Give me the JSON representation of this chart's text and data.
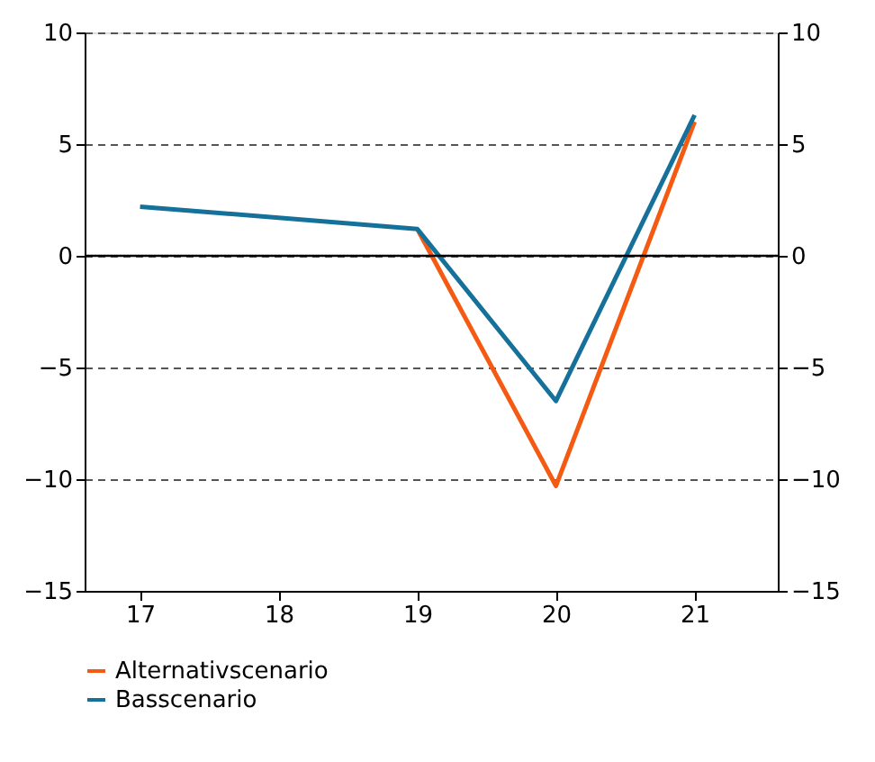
{
  "chart_data": {
    "type": "line",
    "legend": "bottom",
    "grid": "y",
    "xlim": [
      16.6,
      21.6
    ],
    "xticks": [
      17,
      18,
      19,
      20,
      21
    ],
    "ylim": [
      -15,
      10
    ],
    "yticks": [
      -15,
      -10,
      -5,
      0,
      5,
      10
    ],
    "y2lim": [
      -15,
      10
    ],
    "y2ticks": [
      -15,
      -10,
      -5,
      0,
      5,
      10
    ],
    "ref_lines": [
      {
        "axis": "y",
        "value": 0,
        "color": "#000000",
        "line_style": "solid"
      }
    ],
    "series": [
      {
        "name": "Alternativscenario",
        "color": "#f45a12",
        "x": [
          19,
          20,
          21
        ],
        "values": [
          1.2,
          -10.3,
          6.0
        ]
      },
      {
        "name": "Basscenario",
        "color": "#16719a",
        "x": [
          17,
          19,
          20,
          21
        ],
        "values": [
          2.2,
          1.2,
          -6.5,
          6.3
        ]
      }
    ]
  }
}
